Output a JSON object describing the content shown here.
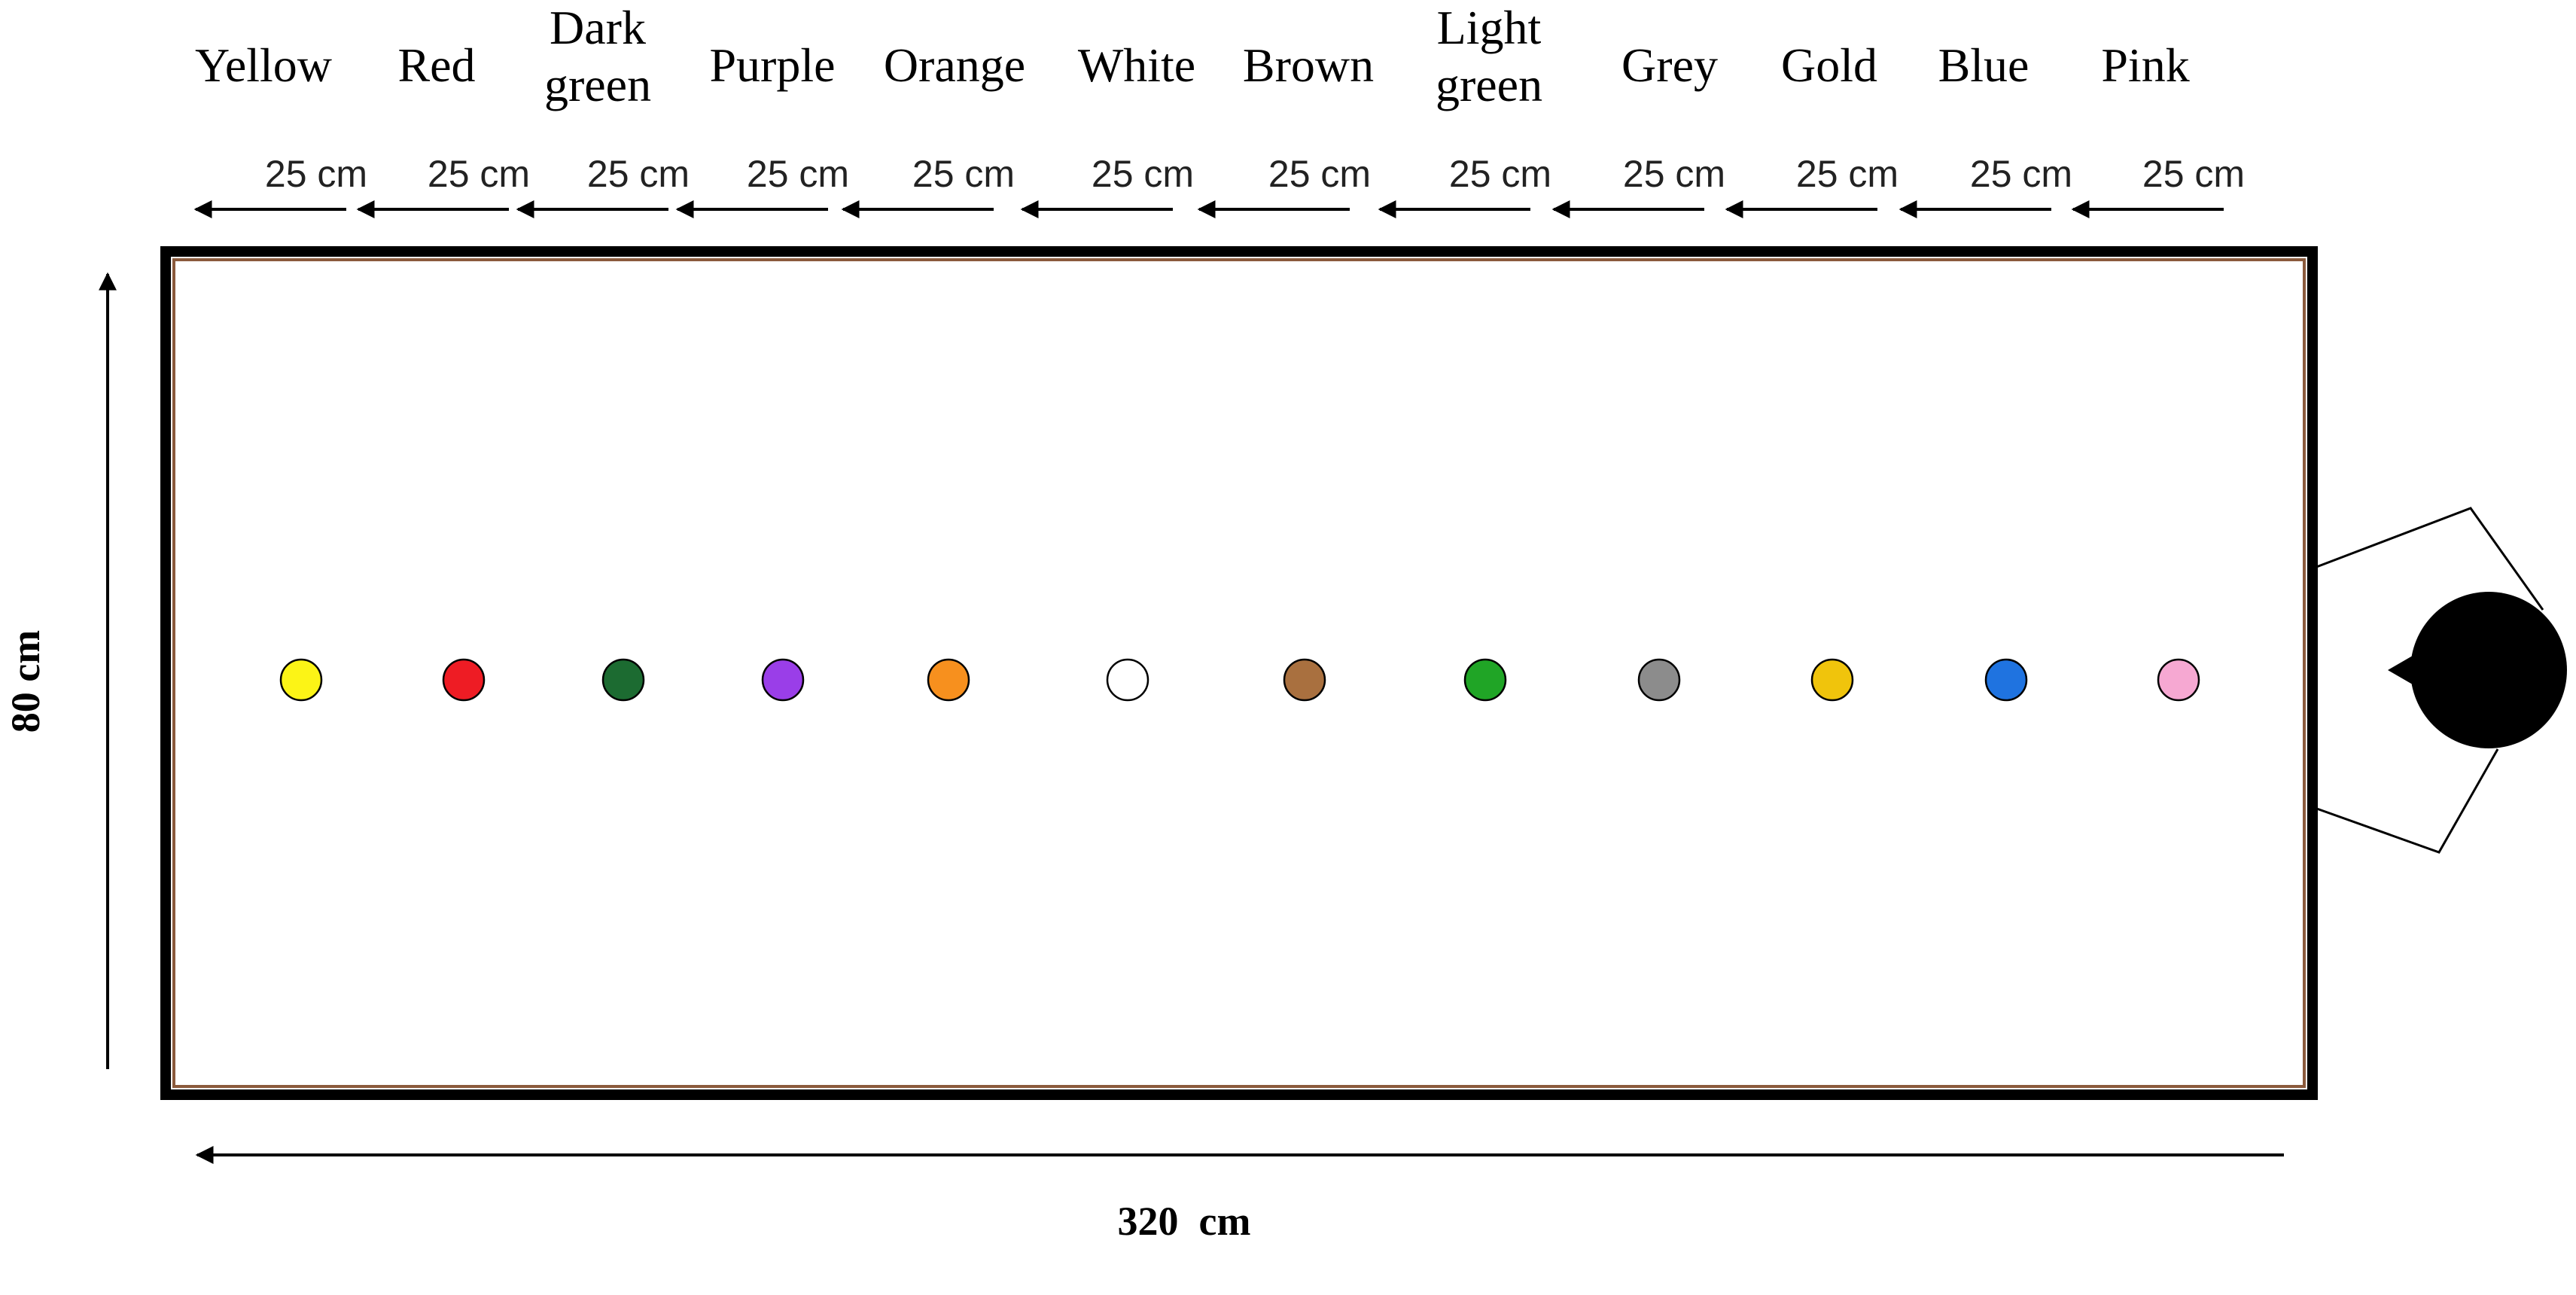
{
  "diagram": {
    "balls": [
      {
        "label_lines": [
          "Yellow"
        ],
        "color": "#fcf416"
      },
      {
        "label_lines": [
          "Red"
        ],
        "color": "#ee1c24"
      },
      {
        "label_lines": [
          "Dark",
          "green"
        ],
        "color": "#1c6b31"
      },
      {
        "label_lines": [
          "Purple"
        ],
        "color": "#9a3ee8"
      },
      {
        "label_lines": [
          "Orange"
        ],
        "color": "#f7901e"
      },
      {
        "label_lines": [
          "White"
        ],
        "color": "#ffffff"
      },
      {
        "label_lines": [
          "Brown"
        ],
        "color": "#a9703f"
      },
      {
        "label_lines": [
          "Light",
          "green"
        ],
        "color": "#20a526"
      },
      {
        "label_lines": [
          "Grey"
        ],
        "color": "#8c8c8c"
      },
      {
        "label_lines": [
          "Gold"
        ],
        "color": "#f0c40c"
      },
      {
        "label_lines": [
          "Blue"
        ],
        "color": "#1f73e0"
      },
      {
        "label_lines": [
          "Pink"
        ],
        "color": "#f6a8d2"
      }
    ],
    "spacing_label": "25 cm",
    "width_label": "80 cm",
    "length_label": "320  cm",
    "colors": {
      "outline": "#000000",
      "table_inner_border": "#8b5a3c",
      "observer": "#000000"
    }
  }
}
